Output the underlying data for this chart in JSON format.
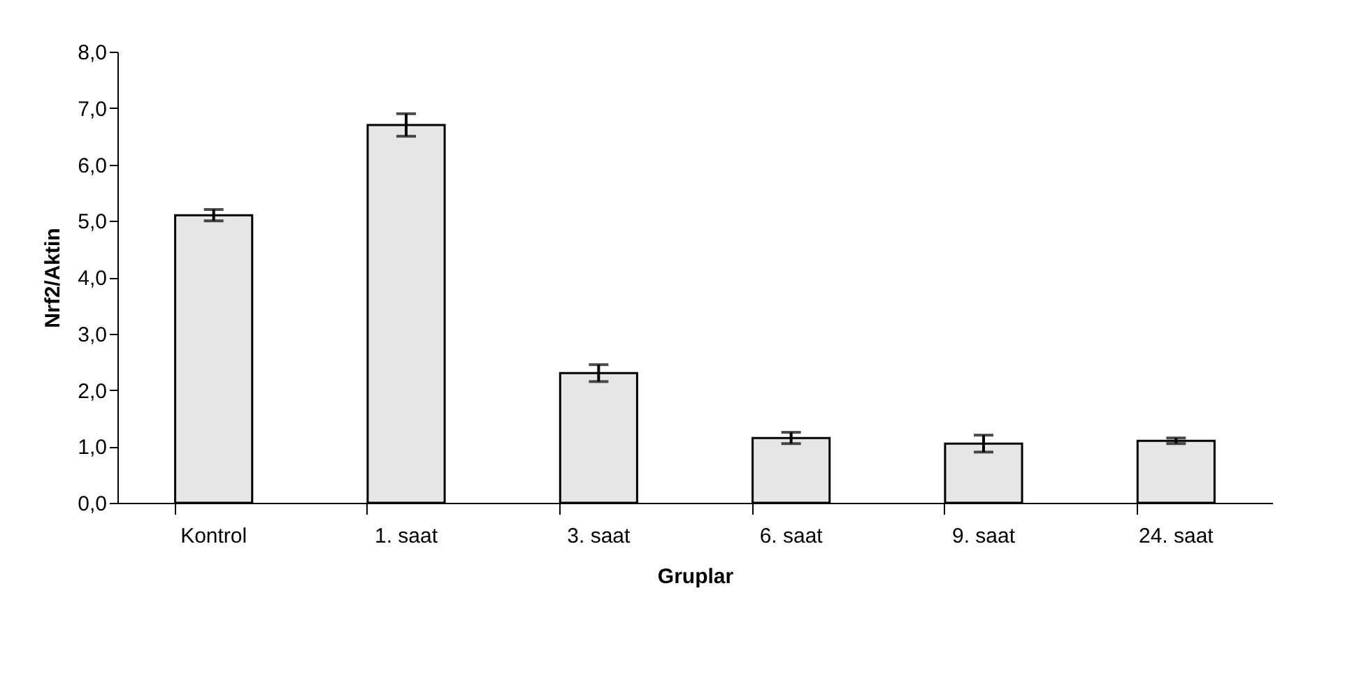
{
  "chart_data": {
    "type": "bar",
    "xlabel": "Gruplar",
    "ylabel": "Nrf2/Aktin",
    "categories": [
      "Kontrol",
      "1. saat",
      "3. saat",
      "6. saat",
      "9. saat",
      "24. saat"
    ],
    "values": [
      5.1,
      6.7,
      2.3,
      1.15,
      1.05,
      1.1
    ],
    "errors": [
      0.1,
      0.2,
      0.15,
      0.1,
      0.15,
      0.05
    ],
    "color": "#e6e6e6",
    "ylim": [
      0,
      8
    ],
    "yticks": [
      {
        "value": 0,
        "label": "0,0"
      },
      {
        "value": 1,
        "label": "1,0"
      },
      {
        "value": 2,
        "label": "2,0"
      },
      {
        "value": 3,
        "label": "3,0"
      },
      {
        "value": 4,
        "label": "4,0"
      },
      {
        "value": 5,
        "label": "5,0"
      },
      {
        "value": 6,
        "label": "6,0"
      },
      {
        "value": 7,
        "label": "7,0"
      },
      {
        "value": 8,
        "label": "8,0"
      }
    ],
    "grid": false
  }
}
